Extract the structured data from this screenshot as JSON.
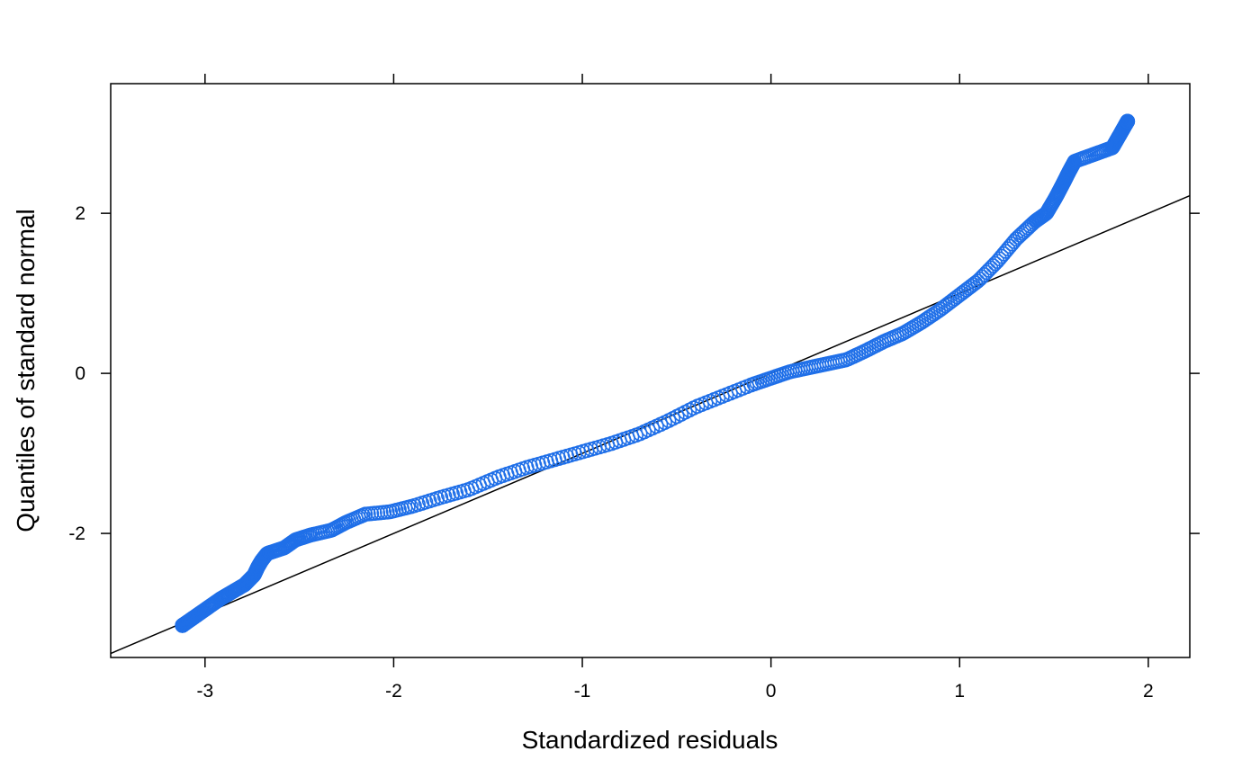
{
  "chart_data": {
    "type": "scatter",
    "title": "",
    "xlabel": "Standardized residuals",
    "ylabel": "Quantiles of standard normal",
    "xlim": [
      -3.5,
      2.22
    ],
    "ylim": [
      -3.55,
      3.62
    ],
    "x_ticks": [
      -3,
      -2,
      -1,
      0,
      1,
      2
    ],
    "y_ticks": [
      -2,
      0,
      2
    ],
    "reference_line": {
      "intercept": 0.0,
      "slope": 1.0
    },
    "grid": false,
    "point_color": "#1f6fe8",
    "line_color": "#000000",
    "anchors": [
      [
        -3.12,
        -3.15
      ],
      [
        -2.92,
        -2.82
      ],
      [
        -2.79,
        -2.64
      ],
      [
        -2.74,
        -2.52
      ],
      [
        -2.72,
        -2.42
      ],
      [
        -2.7,
        -2.34
      ],
      [
        -2.67,
        -2.25
      ],
      [
        -2.58,
        -2.18
      ],
      [
        -2.52,
        -2.08
      ],
      [
        -2.44,
        -2.02
      ],
      [
        -2.33,
        -1.96
      ],
      [
        -2.25,
        -1.86
      ],
      [
        -2.15,
        -1.76
      ],
      [
        -2.02,
        -1.73
      ],
      [
        -1.9,
        -1.66
      ],
      [
        -1.75,
        -1.55
      ],
      [
        -1.6,
        -1.45
      ],
      [
        -1.45,
        -1.3
      ],
      [
        -1.3,
        -1.18
      ],
      [
        -1.15,
        -1.08
      ],
      [
        -1.0,
        -0.98
      ],
      [
        -0.85,
        -0.88
      ],
      [
        -0.7,
        -0.76
      ],
      [
        -0.55,
        -0.6
      ],
      [
        -0.4,
        -0.42
      ],
      [
        -0.25,
        -0.28
      ],
      [
        -0.1,
        -0.14
      ],
      [
        0.0,
        -0.06
      ],
      [
        0.1,
        0.02
      ],
      [
        0.2,
        0.07
      ],
      [
        0.3,
        0.12
      ],
      [
        0.4,
        0.17
      ],
      [
        0.5,
        0.28
      ],
      [
        0.6,
        0.4
      ],
      [
        0.7,
        0.5
      ],
      [
        0.8,
        0.64
      ],
      [
        0.9,
        0.8
      ],
      [
        1.0,
        0.98
      ],
      [
        1.1,
        1.16
      ],
      [
        1.2,
        1.4
      ],
      [
        1.3,
        1.68
      ],
      [
        1.4,
        1.9
      ],
      [
        1.46,
        2.0
      ],
      [
        1.51,
        2.2
      ],
      [
        1.55,
        2.38
      ],
      [
        1.58,
        2.52
      ],
      [
        1.61,
        2.65
      ],
      [
        1.81,
        2.82
      ],
      [
        1.89,
        3.15
      ]
    ]
  }
}
